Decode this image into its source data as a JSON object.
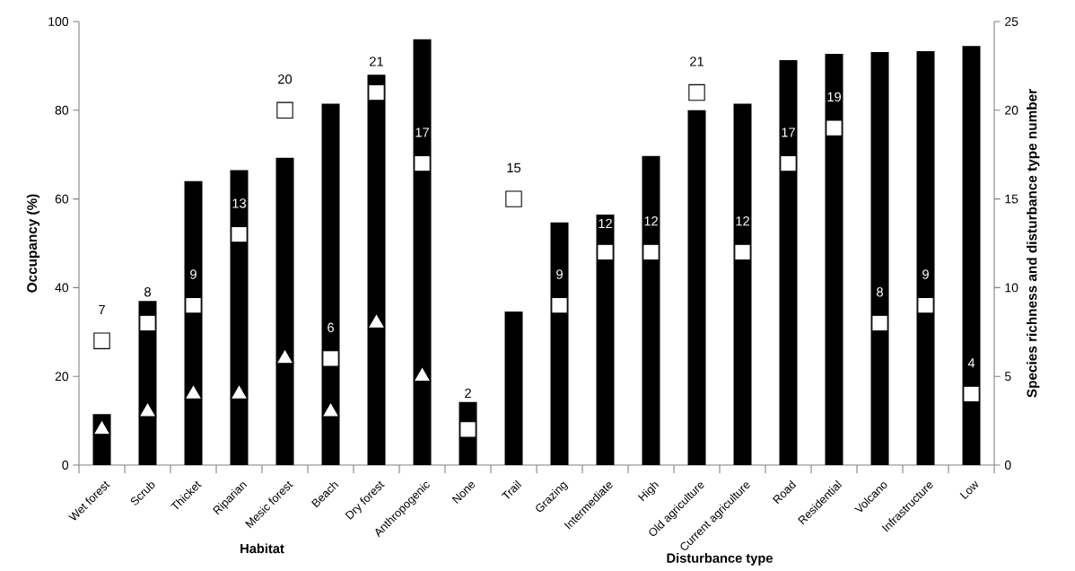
{
  "chart_data": {
    "type": "bar",
    "xlabel": "Habitat",
    "ylabel": "Occupancy (%)",
    "y2label": "Species richness and disturbance type number",
    "annotations": [
      "Disturbance type"
    ],
    "categories": [
      "Wet forest",
      "Scrub",
      "Thicket",
      "Riparian",
      "Mesic forest",
      "Beach",
      "Dry forest",
      "Anthropogenic",
      "None",
      "Trail",
      "Grazing",
      "Intermediate",
      "High",
      "Old agriculture",
      "Current agriculture",
      "Road",
      "Residential",
      "Volcano",
      "Infrastructure",
      "Low"
    ],
    "series": [
      {
        "color": "#000000",
        "values": [
          11.5,
          37,
          64,
          66.5,
          69.3,
          81.5,
          88,
          96,
          14.2,
          34.6,
          54.7,
          56.5,
          69.7,
          80,
          81.5,
          91.3,
          92.7,
          93.1,
          93.3,
          94.5
        ]
      },
      {
        "type": "scatter",
        "axis": "y2",
        "marker": "square",
        "color": "#ffffff",
        "values": [
          7,
          8,
          9,
          13,
          20,
          6,
          21,
          17,
          2,
          15,
          9,
          12,
          12,
          21,
          12,
          17,
          19,
          8,
          9,
          4
        ],
        "value_labels": [
          "7",
          "8",
          "9",
          "13",
          "20",
          "6",
          "21",
          "17",
          "2",
          "15",
          "9",
          "12",
          "12",
          "21",
          "12",
          "17",
          "19",
          "8",
          "9",
          "4"
        ]
      },
      {
        "type": "scatter",
        "axis": "y2",
        "marker": "triangle",
        "color": "#ffffff",
        "values": [
          2,
          3,
          4,
          4,
          6,
          3,
          8,
          5,
          null,
          null,
          null,
          null,
          null,
          null,
          null,
          null,
          null,
          null,
          null,
          null
        ]
      }
    ],
    "ylim": [
      0,
      100
    ],
    "yticks": [
      0,
      20,
      40,
      60,
      80,
      100
    ],
    "y2lim": [
      0,
      25
    ],
    "y2ticks": [
      0,
      5,
      10,
      15,
      20,
      25
    ],
    "grid": false
  }
}
